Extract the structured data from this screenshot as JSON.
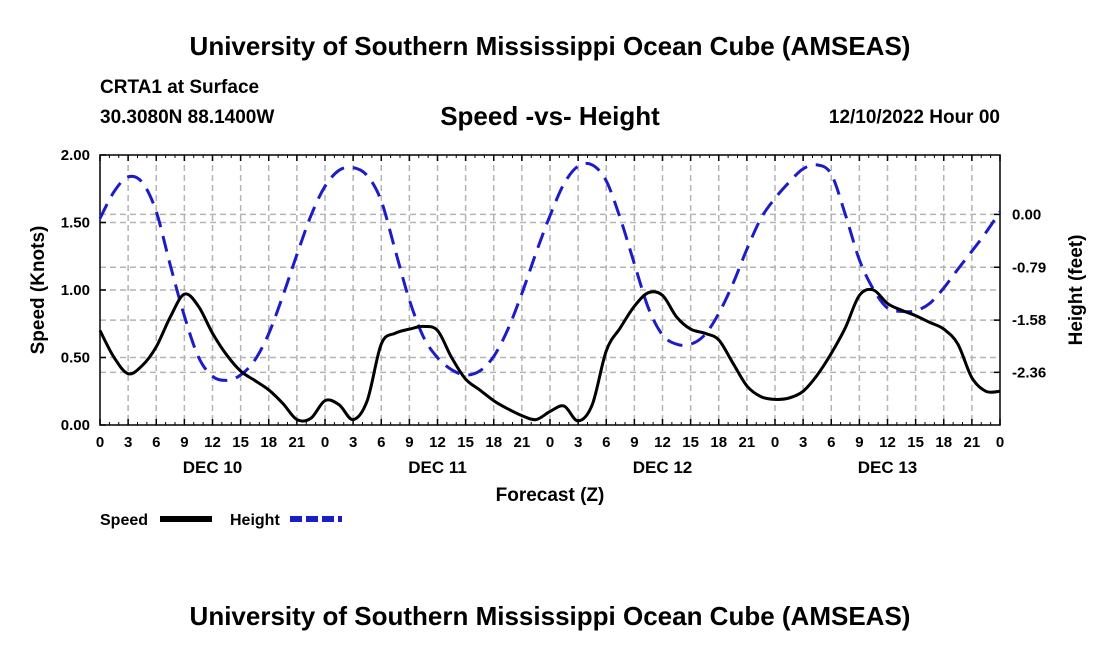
{
  "title_top": "University of Southern Mississippi Ocean Cube (AMSEAS)",
  "title_bottom": "University of Southern Mississippi Ocean Cube (AMSEAS)",
  "station": "CRTA1 at Surface",
  "coords": "30.3080N  88.1400W",
  "datetime": "12/10/2022 Hour 00",
  "chart_data": {
    "type": "line",
    "title": "Speed -vs- Height",
    "xlabel": "Forecast (Z)",
    "ylabel": "Speed (Knots)",
    "ylabel_right": "Height (feet)",
    "x_unit": "hours from 12/10/2022 00Z",
    "xlim": [
      0,
      96
    ],
    "ylim": [
      0,
      2.0
    ],
    "y_ticks": [
      "0.00",
      "0.50",
      "1.00",
      "1.50",
      "2.00"
    ],
    "y_tick_values": [
      0,
      0.5,
      1.0,
      1.5,
      2.0
    ],
    "y2_ticks": [
      "0.00",
      "-0.79",
      "-1.58",
      "-2.36"
    ],
    "y2_tick_values": [
      0.0,
      -0.79,
      -1.58,
      -2.36
    ],
    "y2_map": {
      "ref_height": 0.0,
      "ref_speed": 1.56,
      "knots_per_foot": 0.4957
    },
    "x_tick_labels": [
      "0",
      "3",
      "6",
      "9",
      "12",
      "15",
      "18",
      "21",
      "0",
      "3",
      "6",
      "9",
      "12",
      "15",
      "18",
      "21",
      "0",
      "3",
      "6",
      "9",
      "12",
      "15",
      "18",
      "21",
      "0",
      "3",
      "6",
      "9",
      "12",
      "15",
      "18",
      "21",
      "0"
    ],
    "day_labels": [
      "DEC 10",
      "DEC 11",
      "DEC 12",
      "DEC 13"
    ],
    "day_label_hours": [
      12,
      36,
      60,
      84
    ],
    "grid": true,
    "legend": [
      {
        "name": "Speed",
        "color": "#000000",
        "dash": "solid"
      },
      {
        "name": "Height",
        "color": "#1c1cc8",
        "dash": "dashed"
      }
    ],
    "series": [
      {
        "name": "Speed",
        "axis": "left",
        "color": "#000000",
        "x": [
          0,
          1.5,
          3,
          4.5,
          6,
          7.5,
          9,
          10.5,
          12,
          13.5,
          15,
          16.5,
          18,
          19.5,
          21,
          22.5,
          24,
          25.5,
          27,
          28.5,
          30,
          31.5,
          33,
          34.5,
          36,
          37.5,
          39,
          40.5,
          42,
          43.5,
          45,
          46.5,
          48,
          49.5,
          51,
          52.5,
          54,
          55.5,
          57,
          58.5,
          60,
          61.5,
          63,
          64.5,
          66,
          67.5,
          69,
          70.5,
          72,
          73.5,
          75,
          76.5,
          78,
          79.5,
          81,
          82.5,
          84,
          85.5,
          87,
          88.5,
          90,
          91.5,
          93,
          94.5,
          96
        ],
        "values": [
          0.7,
          0.5,
          0.38,
          0.44,
          0.58,
          0.8,
          0.97,
          0.88,
          0.68,
          0.52,
          0.4,
          0.33,
          0.26,
          0.16,
          0.04,
          0.05,
          0.18,
          0.15,
          0.04,
          0.18,
          0.6,
          0.68,
          0.71,
          0.73,
          0.7,
          0.5,
          0.34,
          0.26,
          0.18,
          0.12,
          0.07,
          0.04,
          0.1,
          0.14,
          0.03,
          0.15,
          0.55,
          0.72,
          0.88,
          0.98,
          0.96,
          0.8,
          0.71,
          0.68,
          0.63,
          0.46,
          0.29,
          0.21,
          0.19,
          0.2,
          0.25,
          0.37,
          0.53,
          0.72,
          0.96,
          1.0,
          0.9,
          0.85,
          0.81,
          0.76,
          0.71,
          0.6,
          0.35,
          0.25,
          0.25
        ]
      },
      {
        "name": "Height",
        "axis": "right",
        "color": "#1c1cc8",
        "dash": "dashed",
        "x": [
          0,
          1.5,
          3,
          4.5,
          6,
          7.5,
          9,
          10.5,
          12,
          13.5,
          15,
          16.5,
          18,
          19.5,
          21,
          22.5,
          24,
          25.5,
          27,
          28.5,
          30,
          31.5,
          33,
          34.5,
          36,
          37.5,
          39,
          40.5,
          42,
          43.5,
          45,
          46.5,
          48,
          49.5,
          51,
          52.5,
          54,
          55.5,
          57,
          58.5,
          60,
          61.5,
          63,
          64.5,
          66,
          67.5,
          69,
          70.5,
          72,
          73.5,
          75,
          76.5,
          78,
          79.5,
          81,
          82.5,
          84,
          85.5,
          87,
          88.5,
          90,
          91.5,
          93,
          94.5,
          96
        ],
        "values": [
          -0.06,
          0.34,
          0.56,
          0.48,
          0.04,
          -0.76,
          -1.52,
          -2.13,
          -2.42,
          -2.48,
          -2.4,
          -2.18,
          -1.78,
          -1.22,
          -0.6,
          -0.02,
          0.42,
          0.66,
          0.7,
          0.58,
          0.2,
          -0.54,
          -1.28,
          -1.83,
          -2.14,
          -2.32,
          -2.4,
          -2.34,
          -2.12,
          -1.72,
          -1.18,
          -0.58,
          -0.02,
          0.46,
          0.72,
          0.74,
          0.5,
          -0.06,
          -0.74,
          -1.4,
          -1.8,
          -1.94,
          -1.94,
          -1.8,
          -1.48,
          -1.04,
          -0.52,
          -0.06,
          0.24,
          0.48,
          0.68,
          0.74,
          0.6,
          0.0,
          -0.68,
          -1.12,
          -1.4,
          -1.45,
          -1.44,
          -1.33,
          -1.1,
          -0.82,
          -0.55,
          -0.27,
          0.04
        ]
      }
    ]
  }
}
